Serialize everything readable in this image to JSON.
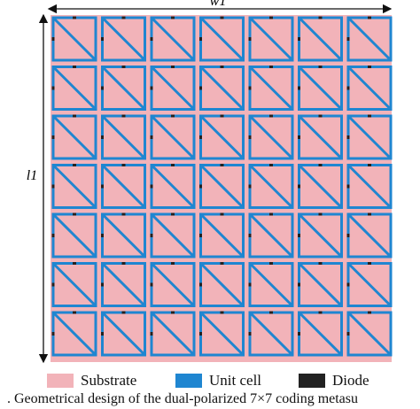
{
  "dimension_labels": {
    "width": "w1",
    "height": "l1"
  },
  "grid": {
    "rows": 7,
    "cols": 7
  },
  "colors": {
    "substrate": "#f2b3b9",
    "unit_cell": "#1f86d1",
    "diode": "#222222",
    "arrow": "#111111"
  },
  "legend": [
    {
      "label": "Substrate",
      "color": "#f2b3b9"
    },
    {
      "label": "Unit cell",
      "color": "#1f86d1"
    },
    {
      "label": "Diode",
      "color": "#222222"
    }
  ],
  "caption": ". Geometrical design of the dual-polarized 7×7 coding metasu"
}
